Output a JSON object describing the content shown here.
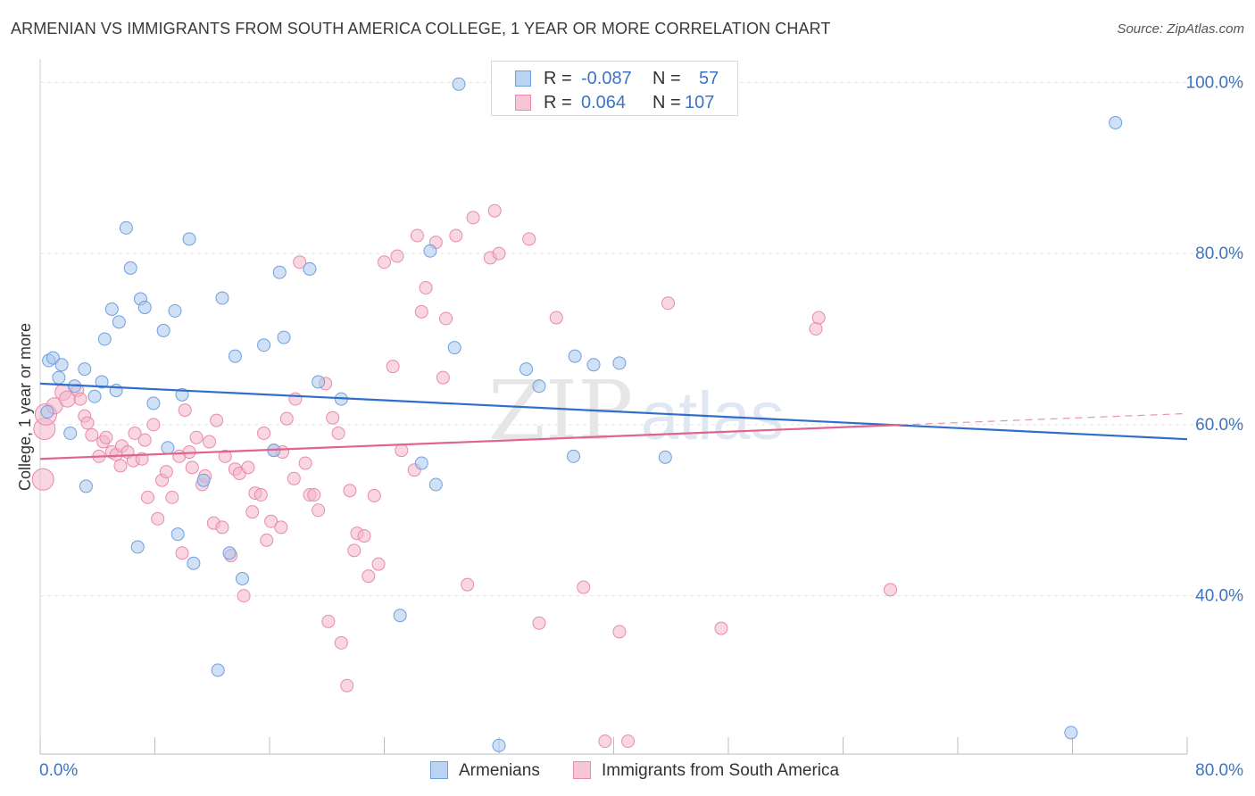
{
  "header": {
    "title": "ARMENIAN VS IMMIGRANTS FROM SOUTH AMERICA COLLEGE, 1 YEAR OR MORE CORRELATION CHART",
    "source": "Source: ZipAtlas.com"
  },
  "legend": {
    "armenians": {
      "r_label": "R =",
      "r_value": "-0.087",
      "n_label": "N =",
      "n_value": "57"
    },
    "immigrants": {
      "r_label": "R =",
      "r_value": "0.064",
      "n_label": "N =",
      "n_value": "107"
    }
  },
  "bottom_legend": {
    "armenians": "Armenians",
    "immigrants": "Immigrants from South America"
  },
  "watermark": {
    "part1": "ZIP",
    "part2": "atlas"
  },
  "colors": {
    "blue_fill": "#a9c8ee",
    "blue_stroke": "#6f9fde",
    "blue_line": "#2f6ecb",
    "pink_fill": "#f4b7cb",
    "pink_stroke": "#e98aab",
    "pink_line": "#e0648f",
    "axis_text": "#3c74c4",
    "grid": "#e3e3e3"
  },
  "chart_data": {
    "type": "scatter",
    "title": "ARMENIAN VS IMMIGRANTS FROM SOUTH AMERICA COLLEGE, 1 YEAR OR MORE CORRELATION CHART",
    "xlabel": "",
    "ylabel": "College, 1 year or more",
    "xlim": [
      0,
      80
    ],
    "ylim": [
      21.5,
      101.5
    ],
    "x_tick_labels": [
      "0.0%",
      "80.0%"
    ],
    "y_tick_values": [
      40,
      60,
      80,
      100
    ],
    "y_tick_labels": [
      "40.0%",
      "60.0%",
      "80.0%",
      "100.0%"
    ],
    "grid": true,
    "legend_position": "top-center",
    "series": [
      {
        "name": "Armenians",
        "color": "#a9c8ee",
        "trend": {
          "x": [
            0,
            80
          ],
          "y": [
            64.8,
            58.3
          ],
          "dashed_from": null
        },
        "points": [
          [
            0.5,
            61.5
          ],
          [
            0.6,
            67.5
          ],
          [
            0.9,
            67.8
          ],
          [
            1.3,
            65.5
          ],
          [
            1.5,
            67.0
          ],
          [
            2.1,
            59.0
          ],
          [
            2.4,
            64.5
          ],
          [
            3.1,
            66.5
          ],
          [
            3.2,
            52.8
          ],
          [
            3.8,
            63.3
          ],
          [
            4.3,
            65.0
          ],
          [
            4.5,
            70.0
          ],
          [
            5.0,
            73.5
          ],
          [
            5.3,
            64.0
          ],
          [
            5.5,
            72.0
          ],
          [
            6.0,
            83.0
          ],
          [
            6.3,
            78.3
          ],
          [
            6.8,
            45.7
          ],
          [
            7.0,
            74.7
          ],
          [
            7.3,
            73.7
          ],
          [
            7.9,
            62.5
          ],
          [
            8.6,
            71.0
          ],
          [
            8.9,
            57.3
          ],
          [
            9.4,
            73.3
          ],
          [
            9.6,
            47.2
          ],
          [
            9.9,
            63.5
          ],
          [
            10.4,
            81.7
          ],
          [
            10.7,
            43.8
          ],
          [
            11.4,
            53.5
          ],
          [
            12.4,
            31.3
          ],
          [
            12.7,
            74.8
          ],
          [
            13.2,
            45.0
          ],
          [
            13.6,
            68.0
          ],
          [
            14.1,
            42.0
          ],
          [
            15.6,
            69.3
          ],
          [
            16.3,
            57.0
          ],
          [
            16.7,
            77.8
          ],
          [
            17.0,
            70.2
          ],
          [
            18.8,
            78.2
          ],
          [
            19.4,
            65.0
          ],
          [
            21.0,
            63.0
          ],
          [
            25.1,
            37.7
          ],
          [
            26.6,
            55.5
          ],
          [
            27.2,
            80.3
          ],
          [
            27.6,
            53.0
          ],
          [
            28.9,
            69.0
          ],
          [
            29.2,
            99.8
          ],
          [
            32.0,
            22.5
          ],
          [
            33.9,
            66.5
          ],
          [
            34.8,
            64.5
          ],
          [
            37.2,
            56.3
          ],
          [
            37.3,
            68.0
          ],
          [
            38.6,
            67.0
          ],
          [
            40.4,
            67.2
          ],
          [
            43.6,
            56.2
          ],
          [
            71.9,
            24.0
          ],
          [
            75.0,
            95.3
          ]
        ],
        "point_sizes": [
          7,
          7,
          7,
          7,
          7,
          7,
          7,
          7,
          7,
          7,
          7,
          7,
          7,
          7,
          7,
          7,
          7,
          7,
          7,
          7,
          7,
          7,
          7,
          7,
          7,
          7,
          7,
          7,
          7,
          7,
          7,
          7,
          7,
          7,
          7,
          7,
          7,
          7,
          7,
          7,
          7,
          7,
          7,
          7,
          7,
          7,
          7,
          7,
          7,
          7,
          7,
          7,
          7,
          7,
          7,
          7,
          7
        ]
      },
      {
        "name": "Immigrants from South America",
        "color": "#f4b7cb",
        "trend": {
          "x": [
            0,
            80
          ],
          "y": [
            56.0,
            61.3
          ],
          "dashed_from": 60
        },
        "points": [
          [
            0.2,
            53.6
          ],
          [
            0.3,
            59.5
          ],
          [
            0.4,
            61.2
          ],
          [
            1.0,
            62.2
          ],
          [
            1.6,
            63.8
          ],
          [
            1.9,
            63.0
          ],
          [
            2.6,
            64.0
          ],
          [
            2.8,
            63.0
          ],
          [
            3.1,
            61.0
          ],
          [
            3.3,
            60.2
          ],
          [
            3.6,
            58.8
          ],
          [
            4.1,
            56.3
          ],
          [
            4.4,
            58.0
          ],
          [
            4.6,
            58.5
          ],
          [
            5.0,
            56.8
          ],
          [
            5.3,
            56.5
          ],
          [
            5.6,
            55.2
          ],
          [
            5.7,
            57.5
          ],
          [
            6.1,
            56.8
          ],
          [
            6.5,
            55.8
          ],
          [
            6.6,
            59.0
          ],
          [
            7.1,
            56.0
          ],
          [
            7.3,
            58.2
          ],
          [
            7.5,
            51.5
          ],
          [
            7.9,
            60.0
          ],
          [
            8.2,
            49.0
          ],
          [
            8.5,
            53.5
          ],
          [
            8.8,
            54.5
          ],
          [
            9.2,
            51.5
          ],
          [
            9.7,
            56.3
          ],
          [
            9.9,
            45.0
          ],
          [
            10.1,
            61.7
          ],
          [
            10.4,
            56.8
          ],
          [
            10.6,
            55.0
          ],
          [
            10.9,
            58.5
          ],
          [
            11.3,
            53.0
          ],
          [
            11.5,
            54.0
          ],
          [
            11.8,
            58.0
          ],
          [
            12.1,
            48.5
          ],
          [
            12.3,
            60.5
          ],
          [
            12.7,
            48.0
          ],
          [
            12.9,
            56.3
          ],
          [
            13.3,
            44.7
          ],
          [
            13.6,
            54.8
          ],
          [
            13.9,
            54.3
          ],
          [
            14.2,
            40.0
          ],
          [
            14.5,
            55.0
          ],
          [
            14.8,
            49.8
          ],
          [
            15.0,
            52.0
          ],
          [
            15.4,
            51.8
          ],
          [
            15.6,
            59.0
          ],
          [
            15.8,
            46.5
          ],
          [
            16.1,
            48.7
          ],
          [
            16.3,
            57.0
          ],
          [
            16.8,
            48.0
          ],
          [
            16.9,
            56.8
          ],
          [
            17.2,
            60.7
          ],
          [
            17.7,
            53.7
          ],
          [
            17.8,
            63.0
          ],
          [
            18.1,
            79.0
          ],
          [
            18.5,
            55.5
          ],
          [
            18.8,
            51.8
          ],
          [
            19.1,
            51.8
          ],
          [
            19.4,
            50.0
          ],
          [
            19.9,
            64.8
          ],
          [
            20.1,
            37.0
          ],
          [
            20.4,
            60.8
          ],
          [
            20.8,
            59.0
          ],
          [
            21.0,
            34.5
          ],
          [
            21.4,
            29.5
          ],
          [
            21.6,
            52.3
          ],
          [
            21.9,
            45.3
          ],
          [
            22.1,
            47.3
          ],
          [
            22.6,
            47.0
          ],
          [
            22.9,
            42.3
          ],
          [
            23.3,
            51.7
          ],
          [
            23.6,
            43.7
          ],
          [
            24.0,
            79.0
          ],
          [
            24.6,
            66.8
          ],
          [
            24.9,
            79.7
          ],
          [
            25.2,
            57.0
          ],
          [
            26.1,
            54.7
          ],
          [
            26.3,
            82.1
          ],
          [
            26.6,
            73.2
          ],
          [
            26.9,
            76.0
          ],
          [
            27.6,
            81.3
          ],
          [
            28.1,
            65.5
          ],
          [
            28.3,
            72.4
          ],
          [
            29.0,
            82.1
          ],
          [
            29.8,
            41.3
          ],
          [
            30.2,
            84.2
          ],
          [
            31.4,
            79.5
          ],
          [
            31.7,
            85.0
          ],
          [
            32.0,
            80.0
          ],
          [
            34.1,
            81.7
          ],
          [
            34.8,
            36.8
          ],
          [
            36.0,
            72.5
          ],
          [
            37.9,
            41.0
          ],
          [
            39.4,
            23.0
          ],
          [
            40.4,
            35.8
          ],
          [
            41.0,
            23.0
          ],
          [
            43.8,
            74.2
          ],
          [
            47.5,
            36.2
          ],
          [
            54.1,
            71.2
          ],
          [
            54.3,
            72.5
          ],
          [
            59.3,
            40.7
          ]
        ],
        "point_sizes": [
          12,
          12,
          12,
          9,
          9,
          9,
          7,
          7,
          7,
          7,
          7,
          7,
          7,
          7,
          7,
          7,
          7,
          7,
          7,
          7,
          7,
          7,
          7,
          7,
          7,
          7,
          7,
          7,
          7,
          7,
          7,
          7,
          7,
          7,
          7,
          7,
          7,
          7,
          7,
          7,
          7,
          7,
          7,
          7,
          7,
          7,
          7,
          7,
          7,
          7,
          7,
          7,
          7,
          7,
          7,
          7,
          7,
          7,
          7,
          7,
          7,
          7,
          7,
          7,
          7,
          7,
          7,
          7,
          7,
          7,
          7,
          7,
          7,
          7,
          7,
          7,
          7,
          7,
          7,
          7,
          7,
          7,
          7,
          7,
          7,
          7,
          7,
          7,
          7,
          7,
          7,
          7,
          7,
          7,
          7,
          7,
          7,
          7,
          7,
          7,
          7,
          7,
          7,
          7,
          7,
          7,
          7
        ]
      }
    ]
  }
}
